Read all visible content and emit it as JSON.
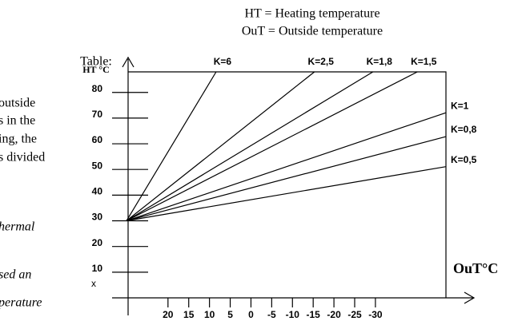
{
  "fragments": [
    "outside",
    "s in the",
    "ing, the",
    "s divided",
    "hermal",
    "sed an",
    "perature"
  ],
  "chart_data": {
    "type": "line",
    "title": "HT = Heating temperature",
    "subtitle": "OuT = Outside temperature",
    "table_label": "Table:",
    "y_label": "HT °C",
    "x_label": "OuT°C",
    "x_marker": "x",
    "xlim": [
      30,
      -47
    ],
    "ylim": [
      0,
      88
    ],
    "xticks": [
      20,
      15,
      10,
      5,
      0,
      -5,
      -10,
      -15,
      -20,
      -25,
      -30
    ],
    "yticks": [
      10,
      20,
      30,
      40,
      50,
      60,
      70,
      80
    ],
    "color": "#000000",
    "series": [
      {
        "name": "K=6",
        "x": [
          30,
          8.4
        ],
        "values": [
          30,
          88
        ]
      },
      {
        "name": "K=2,5",
        "x": [
          30,
          -15.3
        ],
        "values": [
          30,
          88
        ]
      },
      {
        "name": "K=1,8",
        "x": [
          30,
          -29.4
        ],
        "values": [
          30,
          88
        ]
      },
      {
        "name": "K=1,5",
        "x": [
          30,
          -40.1
        ],
        "values": [
          30,
          88
        ]
      },
      {
        "name": "K=1",
        "x": [
          30,
          -47
        ],
        "values": [
          30,
          72.1
        ]
      },
      {
        "name": "K=0,8",
        "x": [
          30,
          -47
        ],
        "values": [
          30,
          62.8
        ]
      },
      {
        "name": "K=0,5",
        "x": [
          30,
          -47
        ],
        "values": [
          30,
          51.1
        ]
      }
    ]
  }
}
